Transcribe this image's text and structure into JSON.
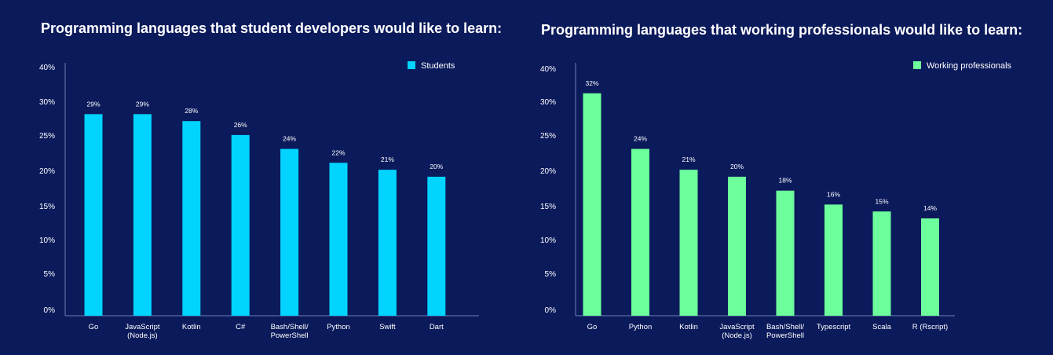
{
  "colors": {
    "background": "#0b1a5b",
    "students": "#00d4ff",
    "professionals": "#6cff9b",
    "axis": "#6e7fb0"
  },
  "chart_data": [
    {
      "type": "bar",
      "title": "Programming languages that student developers would like to learn:",
      "categories": [
        [
          "Go"
        ],
        [
          "JavaScript",
          "(Node.js)"
        ],
        [
          "Kotlin"
        ],
        [
          "C#"
        ],
        [
          "Bash/Shell/",
          "PowerShell"
        ],
        [
          "Python"
        ],
        [
          "Swift"
        ],
        [
          "Dart"
        ]
      ],
      "series": [
        {
          "name": "Students",
          "values": [
            29,
            29,
            28,
            26,
            24,
            22,
            21,
            20
          ]
        }
      ],
      "value_labels": [
        "29%",
        "29%",
        "28%",
        "26%",
        "24%",
        "22%",
        "21%",
        "20%"
      ],
      "y_ticks": [
        "0%",
        "5%",
        "10%",
        "15%",
        "20%",
        "25%",
        "30%",
        "40%"
      ],
      "ylim": [
        0,
        35
      ],
      "legend": "top-right",
      "grid": false
    },
    {
      "type": "bar",
      "title": "Programming languages that working professionals would like to learn:",
      "categories": [
        [
          "Go"
        ],
        [
          "Python"
        ],
        [
          "Kotlin"
        ],
        [
          "JavaScript",
          "(Node.js)"
        ],
        [
          "Bash/Shell/",
          "PowerShell"
        ],
        [
          "Typescript"
        ],
        [
          "Scala"
        ],
        [
          "R (Rscript)"
        ]
      ],
      "series": [
        {
          "name": "Working professionals",
          "values": [
            32,
            24,
            21,
            20,
            18,
            16,
            15,
            14
          ]
        }
      ],
      "value_labels": [
        "32%",
        "24%",
        "21%",
        "20%",
        "18%",
        "16%",
        "15%",
        "14%"
      ],
      "y_ticks": [
        "0%",
        "5%",
        "10%",
        "15%",
        "20%",
        "25%",
        "30%",
        "40%"
      ],
      "ylim": [
        0,
        35
      ],
      "legend": "top-right",
      "grid": false
    }
  ]
}
